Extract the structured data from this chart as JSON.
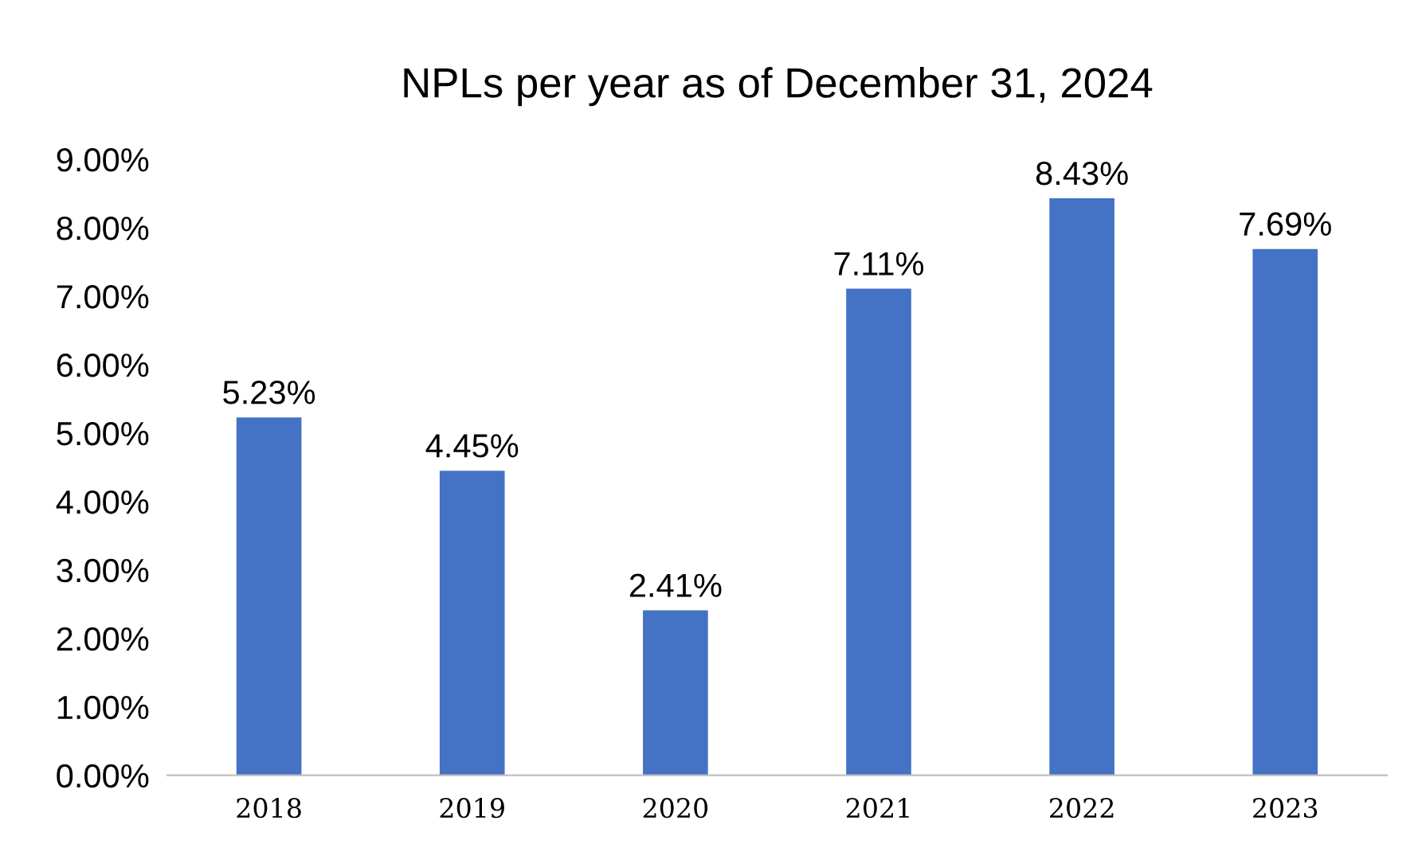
{
  "chart_data": {
    "type": "bar",
    "title": "NPLs per year as of December 31, 2024",
    "categories": [
      "2018",
      "2019",
      "2020",
      "2021",
      "2022",
      "2023"
    ],
    "values": [
      5.23,
      4.45,
      2.41,
      7.11,
      8.43,
      7.69
    ],
    "value_labels": [
      "5.23%",
      "4.45%",
      "2.41%",
      "7.11%",
      "8.43%",
      "7.69%"
    ],
    "color": "#4472c4",
    "ylim": [
      0,
      9
    ],
    "yticks": [
      {
        "value": 0,
        "label": "0.00%"
      },
      {
        "value": 1,
        "label": "1.00%"
      },
      {
        "value": 2,
        "label": "2.00%"
      },
      {
        "value": 3,
        "label": "3.00%"
      },
      {
        "value": 4,
        "label": "4.00%"
      },
      {
        "value": 5,
        "label": "5.00%"
      },
      {
        "value": 6,
        "label": "6.00%"
      },
      {
        "value": 7,
        "label": "7.00%"
      },
      {
        "value": 8,
        "label": "8.00%"
      },
      {
        "value": 9,
        "label": "9.00%"
      }
    ],
    "grid": false,
    "legend": false
  }
}
